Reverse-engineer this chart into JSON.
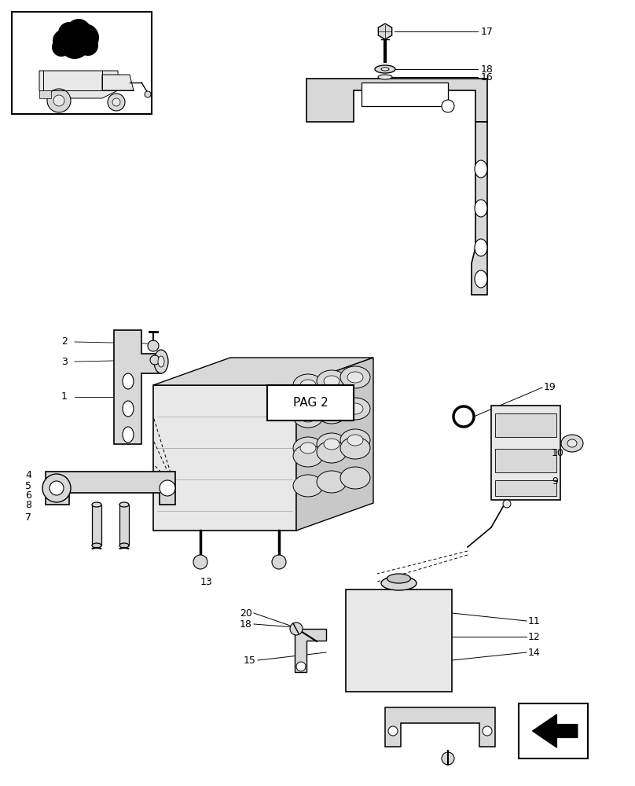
{
  "bg_color": "#ffffff",
  "lc": "#000000",
  "gray1": "#c8c8c8",
  "gray2": "#d8d8d8",
  "gray3": "#e8e8e8",
  "gray4": "#b8b8b8",
  "figw": 8.08,
  "figh": 10.0,
  "dpi": 100
}
